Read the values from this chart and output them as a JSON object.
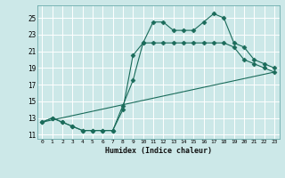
{
  "xlabel": "Humidex (Indice chaleur)",
  "bg_color": "#cce8e8",
  "line_color": "#1a6b5a",
  "grid_color": "#ffffff",
  "xlim": [
    -0.5,
    23.5
  ],
  "ylim": [
    10.5,
    26.5
  ],
  "xticks": [
    0,
    1,
    2,
    3,
    4,
    5,
    6,
    7,
    8,
    9,
    10,
    11,
    12,
    13,
    14,
    15,
    16,
    17,
    18,
    19,
    20,
    21,
    22,
    23
  ],
  "yticks": [
    11,
    13,
    15,
    17,
    19,
    21,
    23,
    25
  ],
  "line1_x": [
    0,
    1,
    2,
    3,
    4,
    5,
    6,
    7,
    8,
    9,
    10,
    11,
    12,
    13,
    14,
    15,
    16,
    17,
    18,
    19,
    20,
    21,
    22,
    23
  ],
  "line1_y": [
    12.5,
    13.0,
    12.5,
    12.0,
    11.5,
    11.5,
    11.5,
    11.5,
    14.0,
    20.5,
    22.0,
    24.5,
    24.5,
    23.5,
    23.5,
    23.5,
    24.5,
    25.5,
    25.0,
    22.0,
    21.5,
    20.0,
    19.5,
    19.0
  ],
  "line2_x": [
    0,
    1,
    2,
    3,
    4,
    5,
    6,
    7,
    8,
    9,
    10,
    11,
    12,
    13,
    14,
    15,
    16,
    17,
    18,
    19,
    20,
    21,
    22,
    23
  ],
  "line2_y": [
    12.5,
    13.0,
    12.5,
    12.0,
    11.5,
    11.5,
    11.5,
    11.5,
    14.5,
    17.5,
    22.0,
    22.0,
    22.0,
    22.0,
    22.0,
    22.0,
    22.0,
    22.0,
    22.0,
    21.5,
    20.0,
    19.5,
    19.0,
    18.5
  ],
  "line3_x": [
    0,
    23
  ],
  "line3_y": [
    12.5,
    18.5
  ],
  "xticklabels": [
    "0",
    "1",
    "2",
    "3",
    "4",
    "5",
    "6",
    "7",
    "8",
    "9",
    "10",
    "11",
    "12",
    "13",
    "14",
    "15",
    "16",
    "17",
    "18",
    "19",
    "20",
    "21",
    "22",
    "23"
  ],
  "yticklabels": [
    "11",
    "13",
    "15",
    "17",
    "19",
    "21",
    "23",
    "25"
  ]
}
